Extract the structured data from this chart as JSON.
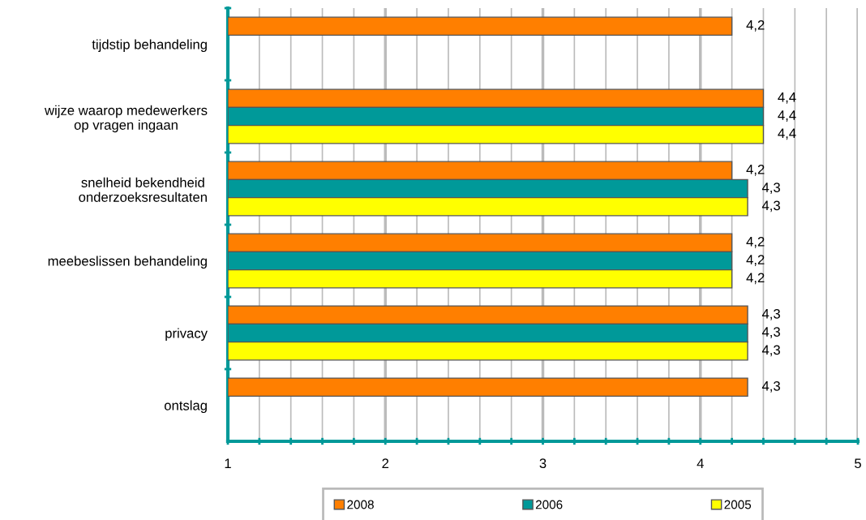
{
  "chart_data": {
    "type": "bar",
    "orientation": "horizontal",
    "categories": [
      "tijdstip behandeling",
      "wijze waarop medewerkers\nop vragen ingaan",
      "snelheid bekendheid\nonderzoeksresultaten",
      "meebeslissen behandeling",
      "privacy",
      "ontslag"
    ],
    "series": [
      {
        "name": "2008",
        "color": "#ff7f00",
        "values": [
          4.2,
          4.4,
          4.2,
          4.2,
          4.3,
          4.3
        ],
        "value_labels": [
          "4,2",
          "4,4",
          "4,2",
          "4,2",
          "4,3",
          "4,3"
        ]
      },
      {
        "name": "2006",
        "color": "#009999",
        "values": [
          null,
          4.4,
          4.3,
          4.2,
          4.3,
          null
        ],
        "value_labels": [
          null,
          "4,4",
          "4,3",
          "4,2",
          "4,3",
          null
        ]
      },
      {
        "name": "2005",
        "color": "#ffff00",
        "values": [
          null,
          4.4,
          4.3,
          4.2,
          4.3,
          null
        ],
        "value_labels": [
          null,
          "4,4",
          "4,3",
          "4,2",
          "4,3",
          null
        ]
      }
    ],
    "xlim": [
      1,
      5
    ],
    "xticks": [
      1,
      {
        "value": 1.2,
        "label": null
      },
      {
        "value": 1.4,
        "label": null
      },
      {
        "value": 1.6,
        "label": null
      },
      {
        "value": 1.8,
        "label": null
      },
      2,
      {
        "value": 2.2,
        "label": null
      },
      {
        "value": 2.4,
        "label": null
      },
      {
        "value": 2.6,
        "label": null
      },
      {
        "value": 2.8,
        "label": null
      },
      3,
      {
        "value": 3.2,
        "label": null
      },
      {
        "value": 3.4,
        "label": null
      },
      {
        "value": 3.6,
        "label": null
      },
      {
        "value": 3.8,
        "label": null
      },
      4,
      {
        "value": 4.2,
        "label": null
      },
      {
        "value": 4.4,
        "label": null
      },
      {
        "value": 4.6,
        "label": null
      },
      {
        "value": 4.8,
        "label": null
      },
      5
    ],
    "grid": "x",
    "legend": "bottom"
  }
}
